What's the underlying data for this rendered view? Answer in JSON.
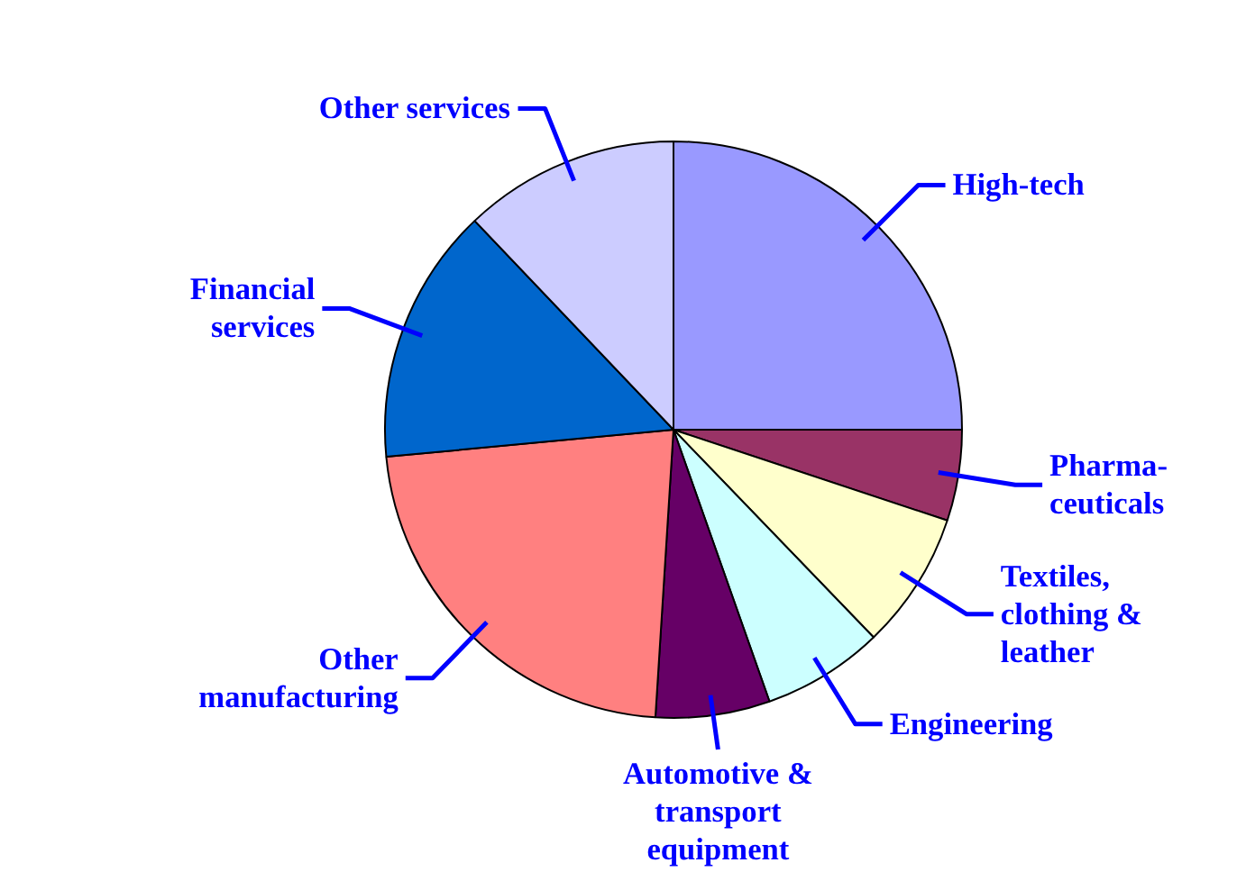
{
  "chart_data": {
    "type": "pie",
    "categories": [
      "High-tech",
      "Pharma-\nceuticals",
      "Textiles,\nclothing &\nleather",
      "Engineering",
      "Automotive &\ntransport\nequipment",
      "Other\nmanufacturing",
      "Financial\nservices",
      "Other services"
    ],
    "values": [
      25,
      5.1,
      7.7,
      6.8,
      6.4,
      22.5,
      14.4,
      12.1
    ],
    "colors": [
      "#9999ff",
      "#993366",
      "#ffffcc",
      "#ccffff",
      "#660066",
      "#ff8080",
      "#0066cc",
      "#ccccff"
    ]
  }
}
